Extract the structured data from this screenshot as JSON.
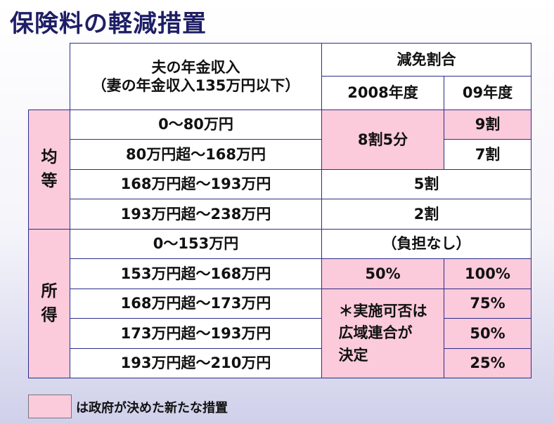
{
  "title": "保険料の軽減措置",
  "header": {
    "income_line1": "夫の年金収入",
    "income_line2": "（妻の年金収入135万円以下）",
    "reduction": "減免割合",
    "year_2008": "2008年度",
    "year_09": "09年度"
  },
  "groups": {
    "kinto_1": "均",
    "kinto_2": "等",
    "shotoku_1": "所",
    "shotoku_2": "得"
  },
  "rows": {
    "r1": "0～80万円",
    "r2": "80万円超～168万円",
    "r3": "168万円超～193万円",
    "r4": "193万円超～238万円",
    "r5": "0～153万円",
    "r6": "153万円超～168万円",
    "r7": "168万円超～173万円",
    "r8": "173万円超～193万円",
    "r9": "193万円超～210万円"
  },
  "values": {
    "r1_09": "9割",
    "r12_2008": "8割5分",
    "r2_09": "7割",
    "r3": "5割",
    "r4": "2割",
    "r5": "（負担なし）",
    "r6_2008": "50%",
    "r6_09": "100%",
    "note_line1": "＊実施可否は",
    "note_line2": "広域連合が",
    "note_line3": "決定",
    "r7_09": "75%",
    "r8_09": "50%",
    "r9_09": "25%"
  },
  "legend": {
    "text": "は政府が決めた新たな措置"
  },
  "colors": {
    "highlight": "#fbcadb",
    "border": "#2d2d8a",
    "title": "#1e1e66"
  }
}
